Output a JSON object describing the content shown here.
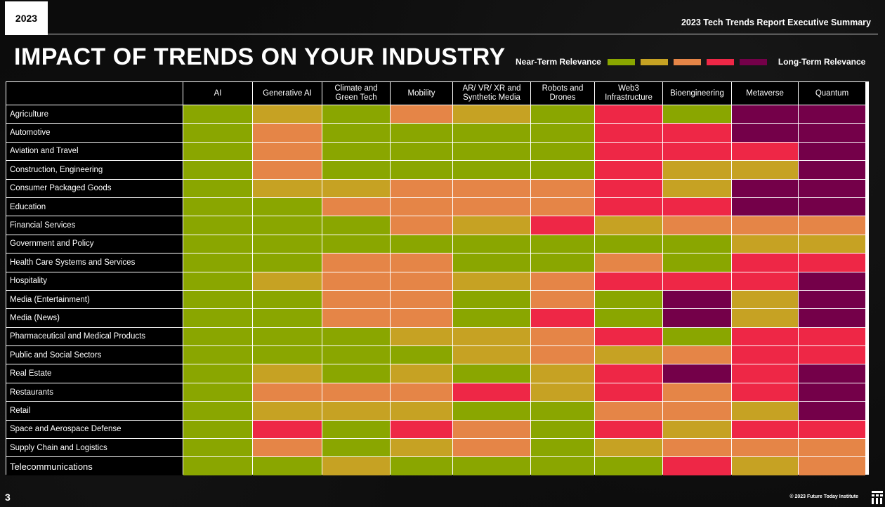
{
  "header": {
    "year": "2023",
    "report_title": "2023 Tech Trends Report Executive Summary",
    "main_title": "IMPACT OF TRENDS ON YOUR INDUSTRY"
  },
  "legend": {
    "near_label": "Near-Term Relevance",
    "far_label": "Long-Term Relevance",
    "scale_colors": [
      "#8aa600",
      "#c6a223",
      "#e58547",
      "#ee2746",
      "#740049"
    ]
  },
  "footer": {
    "page_number": "3",
    "copyright": "© 2023 Future Today Institute",
    "logo_icon": "fti-logo-icon"
  },
  "chart_data": {
    "type": "heatmap",
    "title": "IMPACT OF TRENDS ON YOUR INDUSTRY",
    "scale": "1 = Near-Term Relevance … 5 = Long-Term Relevance",
    "columns": [
      "AI",
      "Generative AI",
      "Climate and Green Tech",
      "Mobility",
      "AR/ VR/ XR and Synthetic Media",
      "Robots and Drones",
      "Web3 Infrastructure",
      "Bioengineering",
      "Metaverse",
      "Quantum"
    ],
    "rows": [
      {
        "industry": "Agriculture",
        "values": [
          1,
          2,
          1,
          3,
          2,
          1,
          4,
          1,
          5,
          5
        ]
      },
      {
        "industry": "Automotive",
        "values": [
          1,
          3,
          1,
          1,
          1,
          1,
          4,
          4,
          5,
          5
        ]
      },
      {
        "industry": "Aviation and Travel",
        "values": [
          1,
          3,
          1,
          1,
          1,
          1,
          4,
          4,
          4,
          5
        ]
      },
      {
        "industry": "Construction, Engineering",
        "values": [
          1,
          3,
          1,
          1,
          1,
          1,
          4,
          2,
          2,
          5
        ]
      },
      {
        "industry": "Consumer Packaged Goods",
        "values": [
          1,
          2,
          2,
          3,
          3,
          3,
          4,
          2,
          5,
          5
        ]
      },
      {
        "industry": "Education",
        "values": [
          1,
          1,
          3,
          3,
          3,
          3,
          4,
          4,
          5,
          5
        ]
      },
      {
        "industry": "Financial Services",
        "values": [
          1,
          1,
          1,
          3,
          2,
          4,
          2,
          3,
          3,
          3
        ]
      },
      {
        "industry": "Government and Policy",
        "values": [
          1,
          1,
          1,
          1,
          1,
          1,
          1,
          1,
          2,
          2
        ]
      },
      {
        "industry": "Health Care Systems and Services",
        "values": [
          1,
          1,
          3,
          3,
          1,
          1,
          3,
          1,
          4,
          4
        ]
      },
      {
        "industry": "Hospitality",
        "values": [
          1,
          2,
          3,
          3,
          2,
          3,
          4,
          4,
          4,
          5
        ]
      },
      {
        "industry": "Media (Entertainment)",
        "values": [
          1,
          1,
          3,
          3,
          1,
          3,
          1,
          5,
          2,
          5
        ]
      },
      {
        "industry": "Media (News)",
        "values": [
          1,
          1,
          3,
          3,
          1,
          4,
          1,
          5,
          2,
          5
        ]
      },
      {
        "industry": "Pharmaceutical and Medical Products",
        "values": [
          1,
          1,
          1,
          2,
          2,
          3,
          4,
          1,
          4,
          4
        ]
      },
      {
        "industry": "Public and Social Sectors",
        "values": [
          1,
          1,
          1,
          1,
          2,
          3,
          2,
          3,
          4,
          4
        ]
      },
      {
        "industry": "Real Estate",
        "values": [
          1,
          2,
          1,
          2,
          1,
          2,
          4,
          5,
          4,
          5
        ]
      },
      {
        "industry": "Restaurants",
        "values": [
          1,
          3,
          3,
          3,
          4,
          2,
          4,
          3,
          4,
          5
        ]
      },
      {
        "industry": "Retail",
        "values": [
          1,
          2,
          2,
          2,
          1,
          1,
          3,
          3,
          2,
          5
        ]
      },
      {
        "industry": "Space and Aerospace Defense",
        "values": [
          1,
          4,
          1,
          4,
          3,
          1,
          4,
          2,
          4,
          4
        ]
      },
      {
        "industry": "Supply Chain and Logistics",
        "values": [
          1,
          3,
          1,
          2,
          3,
          1,
          2,
          3,
          3,
          3
        ]
      },
      {
        "industry": "Telecommunications",
        "values": [
          1,
          1,
          2,
          1,
          1,
          1,
          1,
          4,
          2,
          3
        ]
      }
    ]
  }
}
